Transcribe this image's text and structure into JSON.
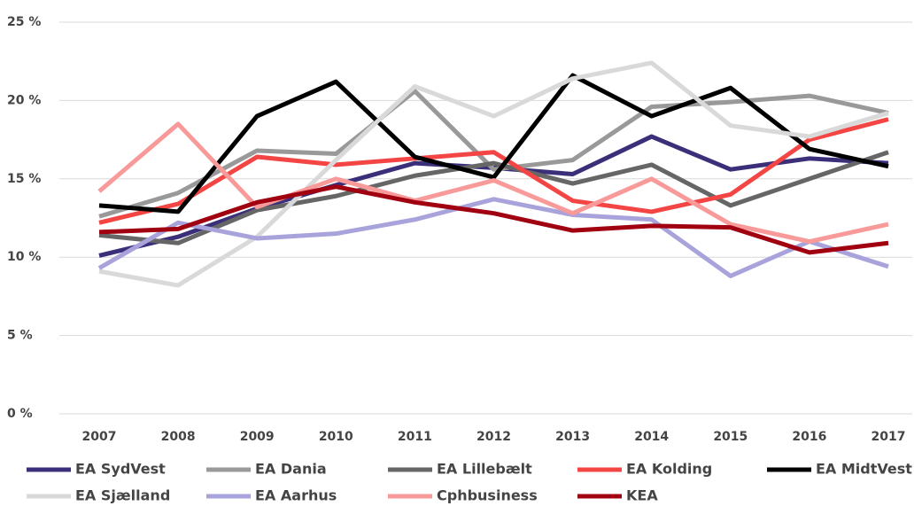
{
  "chart_data": {
    "type": "line",
    "categories": [
      "2007",
      "2008",
      "2009",
      "2010",
      "2011",
      "2012",
      "2013",
      "2014",
      "2015",
      "2016",
      "2017"
    ],
    "series": [
      {
        "name": "EA SydVest",
        "color": "#3b2f7a",
        "values": [
          10.1,
          11.3,
          13.1,
          14.6,
          16.0,
          15.7,
          15.3,
          17.7,
          15.6,
          16.3,
          16.0
        ]
      },
      {
        "name": "EA Dania",
        "color": "#999999",
        "values": [
          12.6,
          14.1,
          16.8,
          16.6,
          20.6,
          15.6,
          16.2,
          19.6,
          19.9,
          20.3,
          19.2
        ]
      },
      {
        "name": "EA Lillebælt",
        "color": "#666666",
        "values": [
          11.4,
          10.9,
          13.0,
          13.9,
          15.2,
          16.0,
          14.7,
          15.9,
          13.3,
          15.0,
          16.7
        ]
      },
      {
        "name": "EA Kolding",
        "color": "#f44545",
        "values": [
          12.2,
          13.4,
          16.4,
          15.9,
          16.3,
          16.7,
          13.6,
          12.9,
          14.0,
          17.5,
          18.8
        ]
      },
      {
        "name": "EA MidtVest",
        "color": "#000000",
        "values": [
          13.3,
          12.9,
          19.0,
          21.2,
          16.4,
          15.1,
          21.6,
          19.0,
          20.8,
          16.9,
          15.8
        ]
      },
      {
        "name": "EA Sjælland",
        "color": "#d9d9d9",
        "values": [
          9.1,
          8.2,
          11.3,
          16.2,
          20.9,
          19.0,
          21.4,
          22.4,
          18.4,
          17.7,
          19.2
        ]
      },
      {
        "name": "EA Aarhus",
        "color": "#a9a3dc",
        "values": [
          9.3,
          12.2,
          11.2,
          11.5,
          12.4,
          13.7,
          12.7,
          12.4,
          8.8,
          11.0,
          9.4
        ]
      },
      {
        "name": "Cphbusiness",
        "color": "#f99a9a",
        "values": [
          14.2,
          18.5,
          13.2,
          15.0,
          13.6,
          14.9,
          12.8,
          15.0,
          12.1,
          11.0,
          12.1
        ]
      },
      {
        "name": "KEA",
        "color": "#a00010",
        "values": [
          11.6,
          11.8,
          13.5,
          14.5,
          13.5,
          12.8,
          11.7,
          12.0,
          11.9,
          10.3,
          10.9
        ]
      }
    ],
    "ylim": [
      0,
      25
    ],
    "yticks": [
      {
        "value": 0,
        "label": "0 %"
      },
      {
        "value": 5,
        "label": "5 %"
      },
      {
        "value": 10,
        "label": "10 %"
      },
      {
        "value": 15,
        "label": "15 %"
      },
      {
        "value": 20,
        "label": "20 %"
      },
      {
        "value": 25,
        "label": "25 %"
      }
    ],
    "grid": true
  }
}
